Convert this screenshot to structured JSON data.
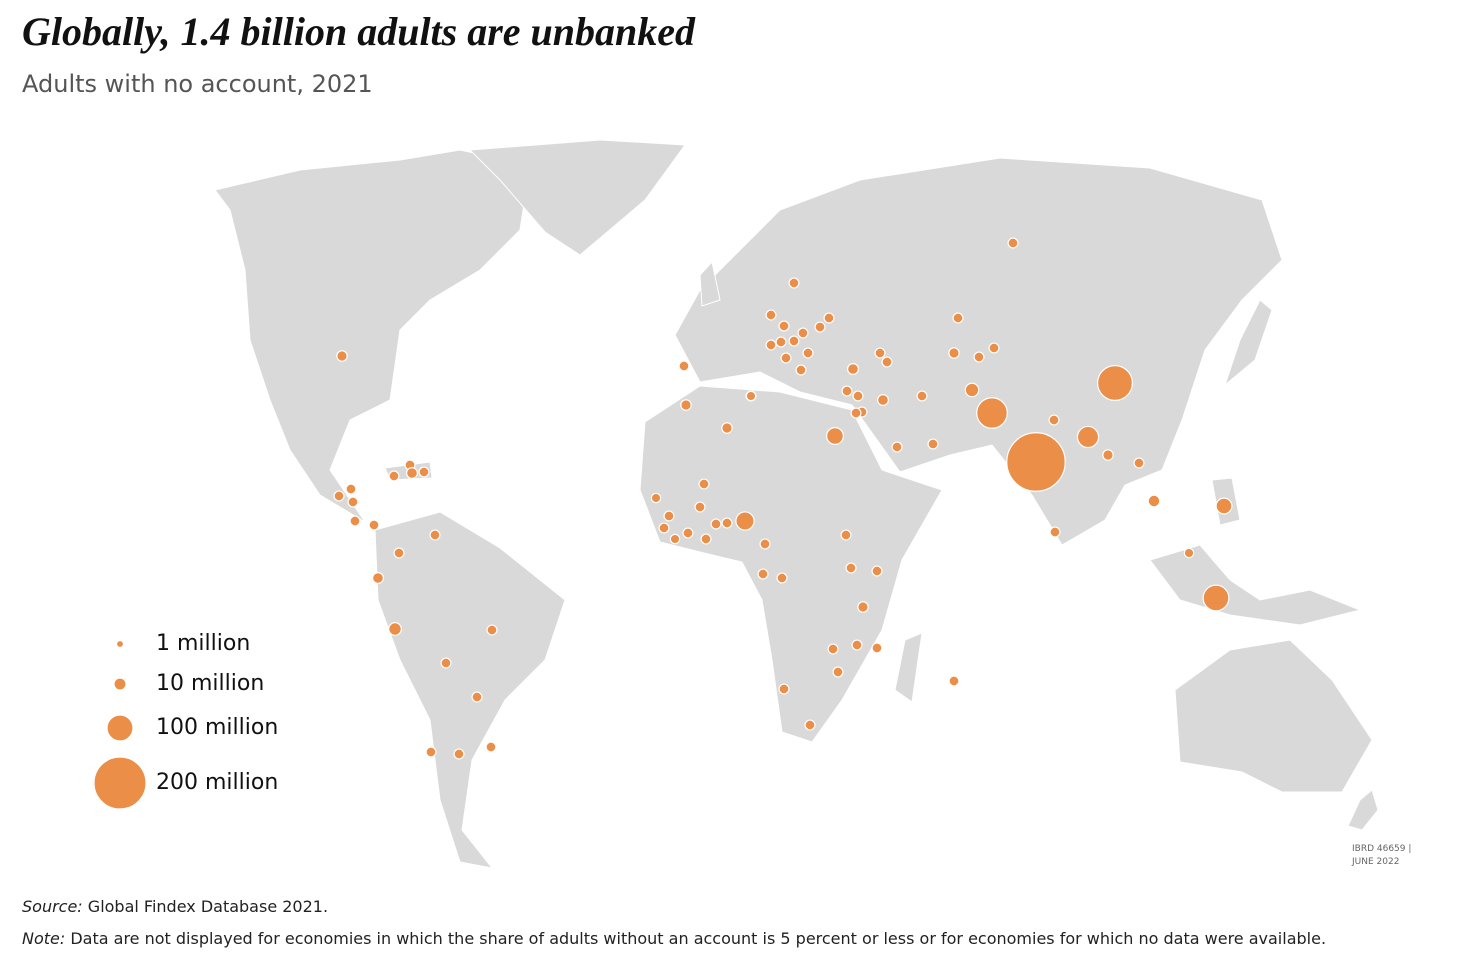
{
  "title": "Globally, 1.4 billion adults are unbanked",
  "subtitle": "Adults with no account, 2021",
  "legend": [
    {
      "value": 1,
      "label": "1 million"
    },
    {
      "value": 10,
      "label": "10 million"
    },
    {
      "value": 100,
      "label": "100 million"
    },
    {
      "value": 200,
      "label": "200 million"
    }
  ],
  "bubbles": [
    6,
    5,
    7,
    5,
    5,
    5,
    5,
    5,
    5,
    5,
    5,
    5,
    7,
    5,
    12,
    5,
    5,
    5,
    5,
    5,
    5,
    5,
    5,
    5,
    5,
    5,
    5,
    5,
    5,
    5,
    5,
    5,
    5,
    5,
    6,
    4,
    6,
    30,
    5,
    4,
    5,
    5,
    5,
    4,
    5,
    5,
    5,
    5,
    38,
    5,
    5,
    5,
    5,
    5,
    5,
    6,
    5,
    5,
    5,
    5,
    5,
    5,
    5,
    4,
    7,
    5,
    5,
    5,
    5,
    5,
    5,
    7,
    5,
    5,
    5,
    15,
    115,
    5,
    5,
    6,
    5,
    5,
    230,
    5,
    5,
    58,
    130,
    6,
    5,
    9,
    25,
    4,
    97
  ],
  "stamp": [
    "IBRD 46659 |",
    "JUNE 2022"
  ],
  "source": {
    "label": "Source:",
    "text": " Global Findex Database 2021."
  },
  "note": {
    "label": "Note:",
    "text": " Data are not displayed for economies in which the share of adults without an account is 5 percent or less or for economies for which no data were available."
  }
}
